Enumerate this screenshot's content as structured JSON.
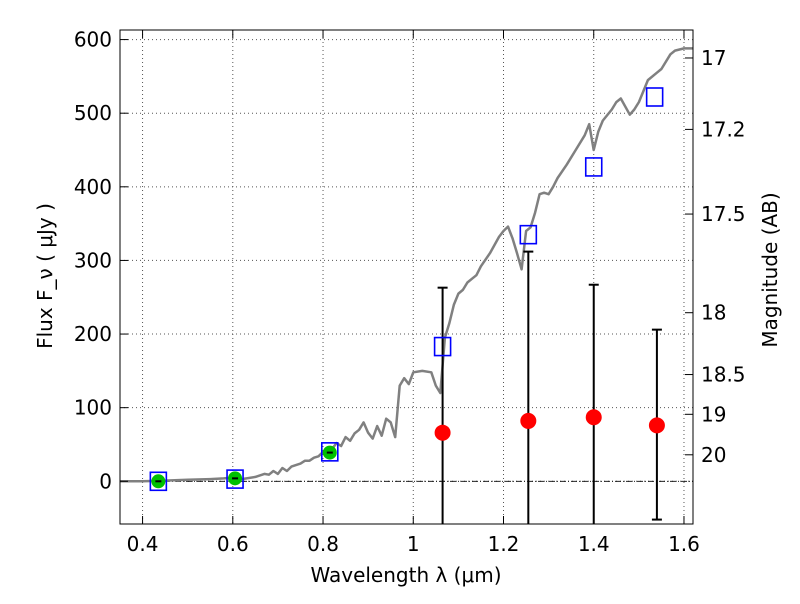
{
  "chart_data": {
    "type": "scatter",
    "xlabel": "Wavelength λ (μm)",
    "ylabel": "Flux F_ν ( μJy )",
    "y2label": "Magnitude (AB)",
    "xlim": [
      0.35,
      1.62
    ],
    "ylim": [
      -58,
      613
    ],
    "grid": true,
    "x_ticks": [
      0.4,
      0.6,
      0.8,
      1.0,
      1.2,
      1.4,
      1.6
    ],
    "x_tick_labels": [
      "0.4",
      "0.6",
      "0.8",
      "1",
      "1.2",
      "1.4",
      "1.6"
    ],
    "y_ticks": [
      0,
      100,
      200,
      300,
      400,
      500,
      600
    ],
    "y_tick_labels": [
      "0",
      "100",
      "200",
      "300",
      "400",
      "500",
      "600"
    ],
    "y2_ticks": [
      {
        "label": "17",
        "flux": 575
      },
      {
        "label": "17.2",
        "flux": 478
      },
      {
        "label": "17.5",
        "flux": 363
      },
      {
        "label": "18",
        "flux": 229
      },
      {
        "label": "18.5",
        "flux": 145
      },
      {
        "label": "19",
        "flux": 91
      },
      {
        "label": "20",
        "flux": 36
      }
    ],
    "colors": {
      "spectrum": "#808080",
      "squares": "#0000ff",
      "green_points": "#00c000",
      "red_points": "#ff0000",
      "errorbars": "#000000",
      "grid": "#555555"
    },
    "spectrum": [
      [
        0.35,
        0
      ],
      [
        0.4,
        0
      ],
      [
        0.45,
        1
      ],
      [
        0.5,
        2
      ],
      [
        0.55,
        3
      ],
      [
        0.58,
        4
      ],
      [
        0.6,
        5
      ],
      [
        0.62,
        3
      ],
      [
        0.65,
        6
      ],
      [
        0.67,
        10
      ],
      [
        0.68,
        9
      ],
      [
        0.69,
        14
      ],
      [
        0.7,
        10
      ],
      [
        0.71,
        18
      ],
      [
        0.72,
        14
      ],
      [
        0.73,
        20
      ],
      [
        0.75,
        24
      ],
      [
        0.76,
        28
      ],
      [
        0.77,
        28
      ],
      [
        0.78,
        32
      ],
      [
        0.79,
        34
      ],
      [
        0.8,
        40
      ],
      [
        0.81,
        42
      ],
      [
        0.82,
        44
      ],
      [
        0.83,
        52
      ],
      [
        0.84,
        48
      ],
      [
        0.85,
        60
      ],
      [
        0.86,
        55
      ],
      [
        0.87,
        65
      ],
      [
        0.88,
        70
      ],
      [
        0.89,
        80
      ],
      [
        0.9,
        66
      ],
      [
        0.91,
        58
      ],
      [
        0.92,
        75
      ],
      [
        0.93,
        62
      ],
      [
        0.94,
        85
      ],
      [
        0.95,
        80
      ],
      [
        0.96,
        60
      ],
      [
        0.97,
        130
      ],
      [
        0.98,
        140
      ],
      [
        0.99,
        132
      ],
      [
        1.0,
        148
      ],
      [
        1.02,
        150
      ],
      [
        1.04,
        148
      ],
      [
        1.05,
        130
      ],
      [
        1.06,
        120
      ],
      [
        1.07,
        195
      ],
      [
        1.08,
        215
      ],
      [
        1.09,
        240
      ],
      [
        1.1,
        255
      ],
      [
        1.11,
        260
      ],
      [
        1.12,
        270
      ],
      [
        1.13,
        275
      ],
      [
        1.14,
        280
      ],
      [
        1.15,
        292
      ],
      [
        1.17,
        310
      ],
      [
        1.19,
        332
      ],
      [
        1.2,
        340
      ],
      [
        1.21,
        346
      ],
      [
        1.22,
        330
      ],
      [
        1.23,
        310
      ],
      [
        1.24,
        288
      ],
      [
        1.25,
        340
      ],
      [
        1.26,
        345
      ],
      [
        1.27,
        365
      ],
      [
        1.28,
        390
      ],
      [
        1.29,
        392
      ],
      [
        1.3,
        390
      ],
      [
        1.31,
        400
      ],
      [
        1.32,
        412
      ],
      [
        1.34,
        430
      ],
      [
        1.36,
        450
      ],
      [
        1.38,
        470
      ],
      [
        1.39,
        485
      ],
      [
        1.4,
        450
      ],
      [
        1.41,
        475
      ],
      [
        1.42,
        490
      ],
      [
        1.44,
        505
      ],
      [
        1.45,
        515
      ],
      [
        1.46,
        520
      ],
      [
        1.48,
        498
      ],
      [
        1.49,
        505
      ],
      [
        1.5,
        515
      ],
      [
        1.52,
        545
      ],
      [
        1.54,
        555
      ],
      [
        1.55,
        560
      ],
      [
        1.57,
        580
      ],
      [
        1.58,
        585
      ],
      [
        1.6,
        588
      ],
      [
        1.62,
        588
      ]
    ],
    "squares": [
      {
        "x": 0.435,
        "y": 0
      },
      {
        "x": 0.605,
        "y": 3
      },
      {
        "x": 0.815,
        "y": 40
      },
      {
        "x": 1.065,
        "y": 183
      },
      {
        "x": 1.255,
        "y": 335
      },
      {
        "x": 1.4,
        "y": 427
      },
      {
        "x": 1.535,
        "y": 522
      }
    ],
    "green_points": [
      {
        "x": 0.435,
        "y": 0
      },
      {
        "x": 0.605,
        "y": 4
      },
      {
        "x": 0.815,
        "y": 39
      }
    ],
    "red_points": [
      {
        "x": 1.065,
        "y": 66,
        "err_low": -58,
        "err_high": 263
      },
      {
        "x": 1.255,
        "y": 82,
        "err_low": -58,
        "err_high": 312
      },
      {
        "x": 1.4,
        "y": 87,
        "err_low": -58,
        "err_high": 267
      },
      {
        "x": 1.54,
        "y": 76,
        "err_low": -52,
        "err_high": 206
      }
    ]
  }
}
